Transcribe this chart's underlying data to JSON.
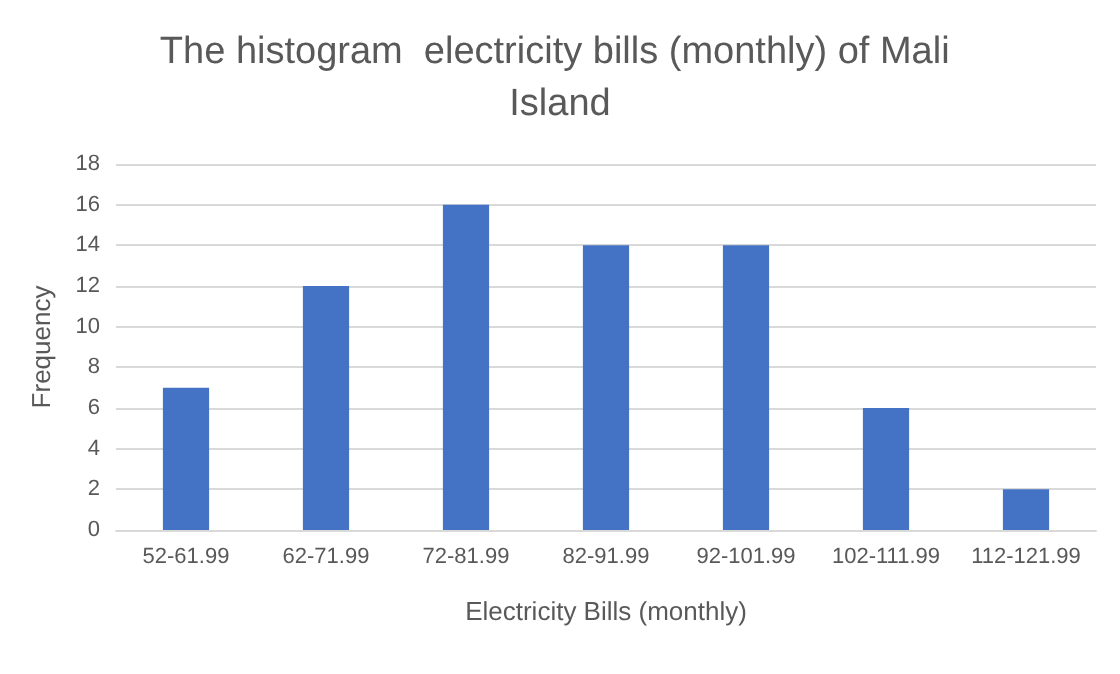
{
  "chart_data": {
    "type": "bar",
    "title": "The histogram  electricity bills (monthly) of Mali Island",
    "xlabel": "Electricity Bills (monthly)",
    "ylabel": "Frequency",
    "categories": [
      "52-61.99",
      "62-71.99",
      "72-81.99",
      "82-91.99",
      "92-101.99",
      "102-111.99",
      "112-121.99"
    ],
    "values": [
      7,
      12,
      16,
      14,
      14,
      6,
      2
    ],
    "color": "#4472c4",
    "ylim": [
      0,
      18
    ],
    "yticks": [
      0,
      2,
      4,
      6,
      8,
      10,
      12,
      14,
      16,
      18
    ],
    "grid": "y"
  }
}
